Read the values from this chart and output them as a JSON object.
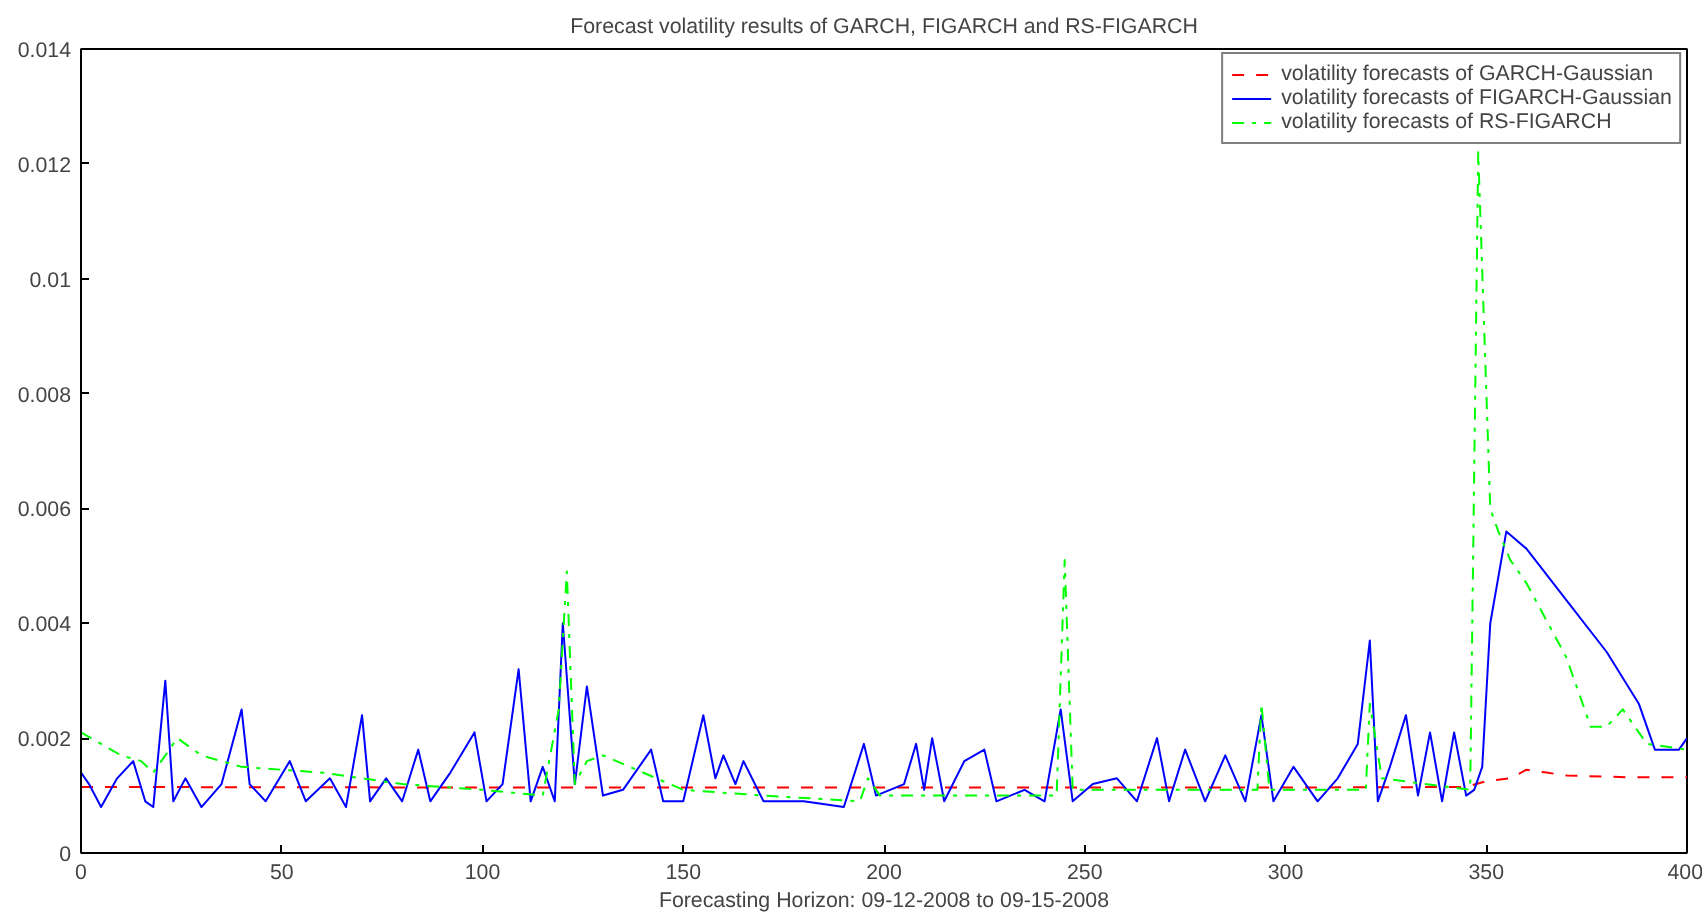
{
  "chart_data": {
    "type": "line",
    "title": "Forecast volatility results of GARCH, FIGARCH and RS-FIGARCH",
    "xlabel": "Forecasting Horizon: 09-12-2008 to 09-15-2008",
    "xlim": [
      0,
      400
    ],
    "xticks": [
      0,
      50,
      100,
      150,
      200,
      250,
      300,
      350,
      400
    ],
    "ylim": [
      0,
      0.014
    ],
    "yticks": [
      0,
      0.002,
      0.004,
      0.006,
      0.008,
      0.01,
      0.012,
      0.014
    ],
    "grid": false,
    "legend": "top right",
    "marker": "none",
    "series": [
      {
        "name": "volatility forecasts of GARCH-Gaussian",
        "color": "#ff0000",
        "line_style": "dashed",
        "x": [
          0,
          100,
          200,
          300,
          345,
          350,
          356,
          360,
          365,
          370,
          385,
          400
        ],
        "values": [
          0.00115,
          0.00114,
          0.00114,
          0.00114,
          0.00115,
          0.00125,
          0.0013,
          0.00145,
          0.0014,
          0.00135,
          0.00132,
          0.00132
        ]
      },
      {
        "name": "volatility forecasts of FIGARCH-Gaussian",
        "color": "#0000ff",
        "line_style": "solid",
        "x": [
          0,
          2,
          5,
          9,
          13,
          16,
          18,
          21,
          23,
          26,
          30,
          35,
          40,
          42,
          46,
          52,
          56,
          62,
          66,
          70,
          72,
          76,
          80,
          84,
          87,
          92,
          98,
          101,
          105,
          109,
          112,
          115,
          118,
          120,
          123,
          126,
          130,
          135,
          142,
          145,
          150,
          155,
          158,
          160,
          163,
          165,
          170,
          180,
          190,
          195,
          198,
          205,
          208,
          210,
          212,
          215,
          220,
          225,
          228,
          235,
          240,
          244,
          247,
          252,
          258,
          263,
          268,
          271,
          275,
          280,
          285,
          290,
          294,
          297,
          302,
          308,
          313,
          318,
          321,
          323,
          326,
          330,
          333,
          336,
          339,
          342,
          345,
          347,
          349,
          351,
          355,
          360,
          370,
          380,
          388,
          390,
          392,
          395,
          398,
          400
        ],
        "values": [
          0.0014,
          0.0012,
          0.0008,
          0.0013,
          0.0016,
          0.0009,
          0.0008,
          0.003,
          0.0009,
          0.0013,
          0.0008,
          0.0012,
          0.0025,
          0.0012,
          0.0009,
          0.0016,
          0.0009,
          0.0013,
          0.0008,
          0.0024,
          0.0009,
          0.0013,
          0.0009,
          0.0018,
          0.0009,
          0.0014,
          0.0021,
          0.0009,
          0.0012,
          0.0032,
          0.0009,
          0.0015,
          0.0009,
          0.004,
          0.0012,
          0.0029,
          0.001,
          0.0011,
          0.0018,
          0.0009,
          0.0009,
          0.0024,
          0.0013,
          0.0017,
          0.0012,
          0.0016,
          0.0009,
          0.0009,
          0.0008,
          0.0019,
          0.001,
          0.0012,
          0.0019,
          0.0011,
          0.002,
          0.0009,
          0.0016,
          0.0018,
          0.0009,
          0.0011,
          0.0009,
          0.0025,
          0.0009,
          0.0012,
          0.0013,
          0.0009,
          0.002,
          0.0009,
          0.0018,
          0.0009,
          0.0017,
          0.0009,
          0.0024,
          0.0009,
          0.0015,
          0.0009,
          0.0013,
          0.0019,
          0.0037,
          0.0009,
          0.0015,
          0.0024,
          0.001,
          0.0021,
          0.0009,
          0.0021,
          0.001,
          0.0011,
          0.0015,
          0.004,
          0.0056,
          0.0053,
          0.0044,
          0.0035,
          0.0026,
          0.0022,
          0.0018,
          0.0018,
          0.0018,
          0.002
        ]
      },
      {
        "name": "volatility forecasts of RS-FIGARCH",
        "color": "#00ff00",
        "line_style": "dashdot",
        "x": [
          0,
          10,
          15,
          18,
          24,
          30,
          40,
          60,
          80,
          100,
          115,
          119,
          121,
          123,
          126,
          130,
          150,
          170,
          194,
          196,
          199,
          220,
          243,
          245,
          247,
          270,
          293,
          294,
          296,
          320,
          321,
          324,
          346,
          348,
          351,
          353,
          356,
          360,
          370,
          373,
          376,
          380,
          384,
          390,
          400
        ],
        "values": [
          0.0021,
          0.0017,
          0.0016,
          0.0014,
          0.002,
          0.0017,
          0.0015,
          0.0014,
          0.0012,
          0.0011,
          0.001,
          0.0025,
          0.0049,
          0.0012,
          0.0016,
          0.0017,
          0.0011,
          0.001,
          0.0009,
          0.0013,
          0.001,
          0.001,
          0.001,
          0.0051,
          0.0011,
          0.0011,
          0.0011,
          0.0026,
          0.0011,
          0.0011,
          0.0026,
          0.0013,
          0.0011,
          0.0122,
          0.006,
          0.0056,
          0.0051,
          0.0047,
          0.0034,
          0.0028,
          0.0022,
          0.0022,
          0.0025,
          0.0019,
          0.0018
        ]
      }
    ]
  }
}
